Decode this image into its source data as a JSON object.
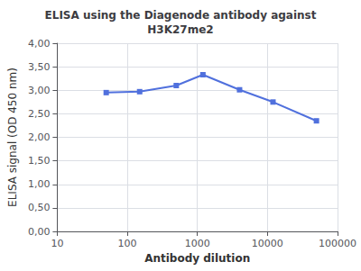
{
  "chart_data": {
    "type": "line",
    "title": "ELISA using the Diagenode antibody against\nH3K27me2",
    "xlabel": "Antibody dilution",
    "ylabel": "ELISA signal (OD 450 nm)",
    "x": [
      50,
      150,
      500,
      1200,
      4000,
      12000,
      50000
    ],
    "values": [
      2.95,
      2.97,
      3.1,
      3.33,
      3.01,
      2.75,
      2.35
    ],
    "log": "x",
    "xlim": [
      10,
      100000
    ],
    "xticks": [
      10,
      100,
      1000,
      10000,
      100000
    ],
    "ylim": [
      0.0,
      4.0
    ],
    "yticks": [
      {
        "value": 0.0,
        "label": "0,00"
      },
      {
        "value": 0.5,
        "label": "0,50"
      },
      {
        "value": 1.0,
        "label": "1,00"
      },
      {
        "value": 1.5,
        "label": "1,50"
      },
      {
        "value": 2.0,
        "label": "2,00"
      },
      {
        "value": 2.5,
        "label": "2,50"
      },
      {
        "value": 3.0,
        "label": "3,00"
      },
      {
        "value": 3.5,
        "label": "3,50"
      },
      {
        "value": 4.0,
        "label": "4,00"
      }
    ],
    "grid": true,
    "marker": "square",
    "line_style": "solid"
  }
}
